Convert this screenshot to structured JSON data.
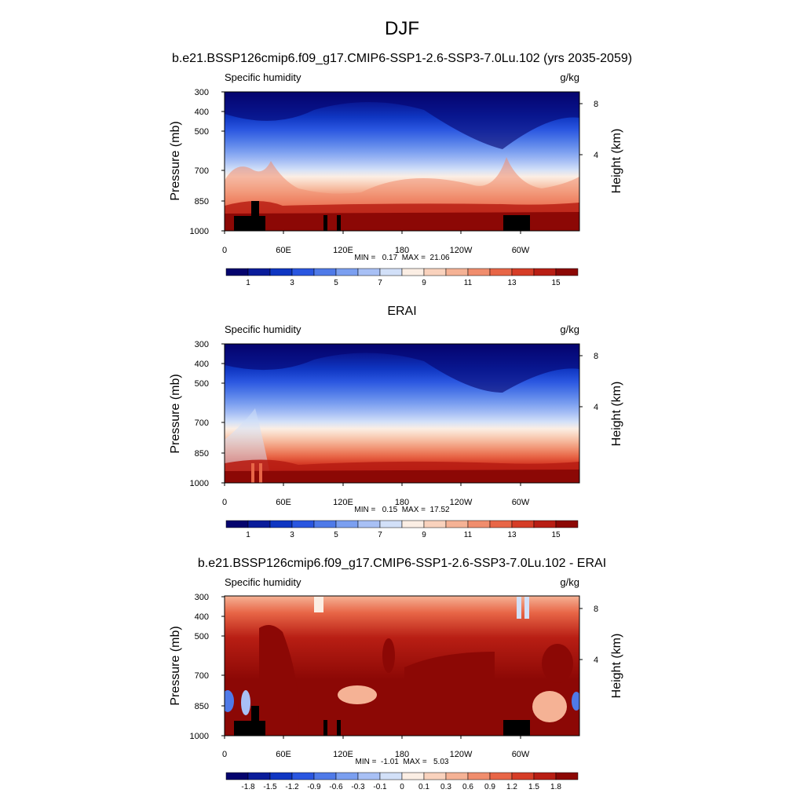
{
  "figure": {
    "title": "DJF"
  },
  "chart_data": [
    {
      "type": "heatmap",
      "title": "b.e21.BSSP126cmip6.f09_g17.CMIP6-SSP1-2.6-SSP3-7.0Lu.102 (yrs 2035-2059)",
      "left_string": "Specific humidity",
      "right_string": "g/kg",
      "ylabel": "Pressure (mb)",
      "ylabel_right": "Height (km)",
      "x_ticks": [
        "0",
        "60E",
        "120E",
        "180",
        "120W",
        "60W"
      ],
      "y_ticks": [
        "300",
        "400",
        "500",
        "700",
        "850",
        "1000"
      ],
      "y_right_ticks": [
        "8",
        "4"
      ],
      "stats": "MIN =   0.17  MAX =  21.06",
      "colorbar_labels": [
        "1",
        "3",
        "5",
        "7",
        "9",
        "11",
        "13",
        "15"
      ],
      "colorbar_levels": [
        0.5,
        1,
        2,
        3,
        4,
        5,
        6,
        7,
        8,
        9,
        10,
        11,
        12,
        13,
        14,
        15,
        16
      ],
      "xlim": [
        0,
        360
      ],
      "ylim": [
        1000,
        300
      ]
    },
    {
      "type": "heatmap",
      "title": "ERAI",
      "left_string": "Specific humidity",
      "right_string": "g/kg",
      "ylabel": "Pressure (mb)",
      "ylabel_right": "Height (km)",
      "x_ticks": [
        "0",
        "60E",
        "120E",
        "180",
        "120W",
        "60W"
      ],
      "y_ticks": [
        "300",
        "400",
        "500",
        "700",
        "850",
        "1000"
      ],
      "y_right_ticks": [
        "8",
        "4"
      ],
      "stats": "MIN =   0.15  MAX =  17.52",
      "colorbar_labels": [
        "1",
        "3",
        "5",
        "7",
        "9",
        "11",
        "13",
        "15"
      ],
      "colorbar_levels": [
        0.5,
        1,
        2,
        3,
        4,
        5,
        6,
        7,
        8,
        9,
        10,
        11,
        12,
        13,
        14,
        15,
        16
      ],
      "xlim": [
        0,
        360
      ],
      "ylim": [
        1000,
        300
      ]
    },
    {
      "type": "heatmap",
      "title": "b.e21.BSSP126cmip6.f09_g17.CMIP6-SSP1-2.6-SSP3-7.0Lu.102 - ERAI",
      "left_string": "Specific humidity",
      "right_string": "g/kg",
      "ylabel": "Pressure (mb)",
      "ylabel_right": "Height (km)",
      "x_ticks": [
        "0",
        "60E",
        "120E",
        "180",
        "120W",
        "60W"
      ],
      "y_ticks": [
        "300",
        "400",
        "500",
        "700",
        "850",
        "1000"
      ],
      "y_right_ticks": [
        "8",
        "4"
      ],
      "stats": "MIN =  -1.01  MAX =   5.03",
      "colorbar_labels": [
        "-1.8",
        "-1.5",
        "-1.2",
        "-0.9",
        "-0.6",
        "-0.3",
        "-0.1",
        "0",
        "0.1",
        "0.3",
        "0.6",
        "0.9",
        "1.2",
        "1.5",
        "1.8"
      ],
      "colorbar_levels": [
        -1.8,
        -1.5,
        -1.2,
        -0.9,
        -0.6,
        -0.3,
        -0.1,
        0,
        0.1,
        0.3,
        0.6,
        0.9,
        1.2,
        1.5,
        1.8
      ],
      "xlim": [
        0,
        360
      ],
      "ylim": [
        1000,
        300
      ]
    }
  ],
  "colormap": [
    "#05046e",
    "#0a1c9a",
    "#0f36c2",
    "#2a56e0",
    "#4f7ae8",
    "#7b9ff0",
    "#a8c0f5",
    "#d2e0f8",
    "#fbeee4",
    "#f9d2bd",
    "#f5b295",
    "#f08d6d",
    "#e86647",
    "#d63d27",
    "#b81e14",
    "#8c0805"
  ]
}
